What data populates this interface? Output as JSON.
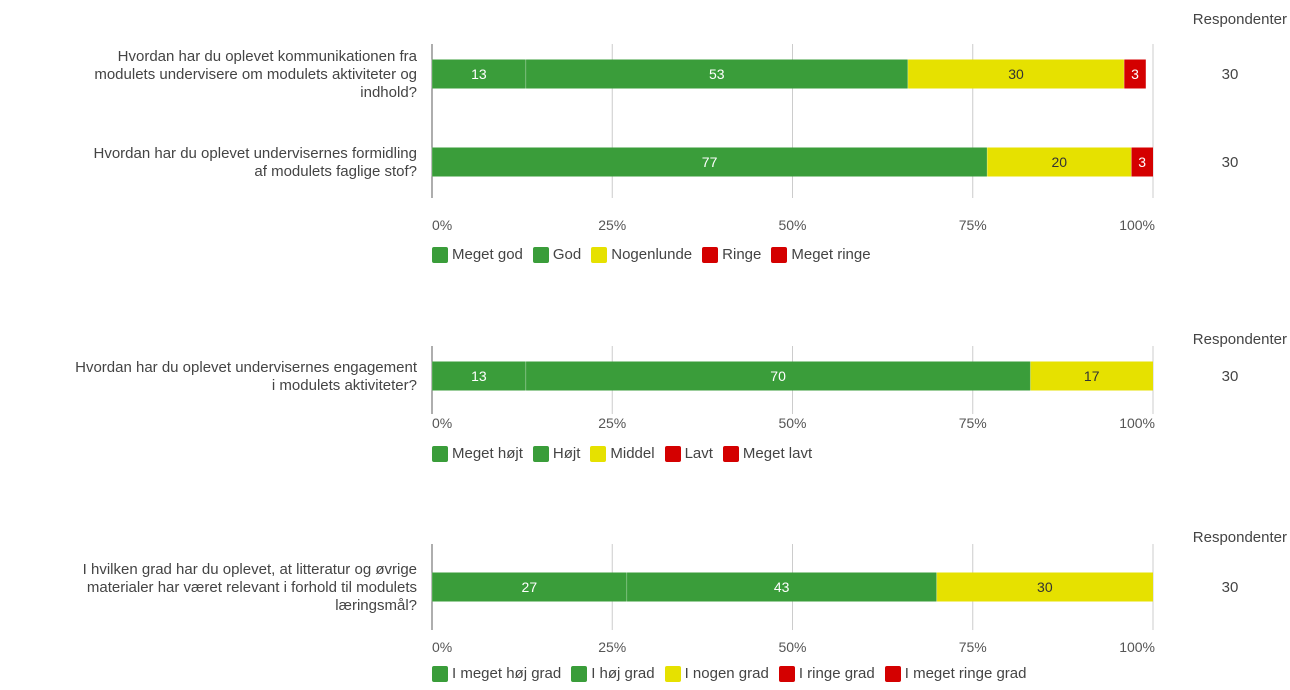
{
  "chart_data": [
    {
      "type": "bar",
      "orientation": "horizontal-stacked-percent",
      "respondents_header": "Respondenter",
      "categories": [
        [
          "Hvordan har du oplevet kommunikationen fra",
          "modulets undervisere om modulets aktiviteter og",
          "indhold?"
        ],
        [
          "Hvordan har du oplevet undervisernes formidling",
          "af modulets faglige stof?"
        ]
      ],
      "respondents": [
        "30",
        "30"
      ],
      "xlim": [
        0,
        100
      ],
      "ticks": [
        "0%",
        "25%",
        "50%",
        "75%",
        "100%"
      ],
      "series": [
        {
          "name": "Meget god",
          "color": "#3a9d3a",
          "label_color": "#ffffff",
          "values": [
            13,
            0
          ]
        },
        {
          "name": "God",
          "color": "#3a9d3a",
          "label_color": "#ffffff",
          "values": [
            53,
            77
          ]
        },
        {
          "name": "Nogenlunde",
          "color": "#e6e100",
          "label_color": "#333333",
          "values": [
            30,
            20
          ]
        },
        {
          "name": "Ringe",
          "color": "#d40000",
          "label_color": "#ffffff",
          "values": [
            3,
            3
          ]
        },
        {
          "name": "Meget ringe",
          "color": "#d40000",
          "label_color": "#ffffff",
          "values": [
            0,
            0
          ]
        }
      ],
      "legend_position": "bottom"
    },
    {
      "type": "bar",
      "orientation": "horizontal-stacked-percent",
      "respondents_header": "Respondenter",
      "categories": [
        [
          "Hvordan har du oplevet undervisernes engagement",
          "i modulets aktiviteter?"
        ]
      ],
      "respondents": [
        "30"
      ],
      "xlim": [
        0,
        100
      ],
      "ticks": [
        "0%",
        "25%",
        "50%",
        "75%",
        "100%"
      ],
      "series": [
        {
          "name": "Meget højt",
          "color": "#3a9d3a",
          "label_color": "#ffffff",
          "values": [
            13
          ]
        },
        {
          "name": "Højt",
          "color": "#3a9d3a",
          "label_color": "#ffffff",
          "values": [
            70
          ]
        },
        {
          "name": "Middel",
          "color": "#e6e100",
          "label_color": "#333333",
          "values": [
            17
          ]
        },
        {
          "name": "Lavt",
          "color": "#d40000",
          "label_color": "#ffffff",
          "values": [
            0
          ]
        },
        {
          "name": "Meget lavt",
          "color": "#d40000",
          "label_color": "#ffffff",
          "values": [
            0
          ]
        }
      ],
      "legend_position": "bottom"
    },
    {
      "type": "bar",
      "orientation": "horizontal-stacked-percent",
      "respondents_header": "Respondenter",
      "categories": [
        [
          "I hvilken grad har du oplevet, at litteratur og øvrige",
          "materialer har været relevant i forhold til modulets",
          "læringsmål?"
        ]
      ],
      "respondents": [
        "30"
      ],
      "xlim": [
        0,
        100
      ],
      "ticks": [
        "0%",
        "25%",
        "50%",
        "75%",
        "100%"
      ],
      "series": [
        {
          "name": "I meget høj grad",
          "color": "#3a9d3a",
          "label_color": "#ffffff",
          "values": [
            27
          ]
        },
        {
          "name": "I høj grad",
          "color": "#3a9d3a",
          "label_color": "#ffffff",
          "values": [
            43
          ]
        },
        {
          "name": "I nogen grad",
          "color": "#e6e100",
          "label_color": "#333333",
          "values": [
            30
          ]
        },
        {
          "name": "I ringe grad",
          "color": "#d40000",
          "label_color": "#ffffff",
          "values": [
            0
          ]
        },
        {
          "name": "I meget ringe grad",
          "color": "#d40000",
          "label_color": "#ffffff",
          "values": [
            0
          ]
        }
      ],
      "legend_position": "bottom"
    }
  ]
}
